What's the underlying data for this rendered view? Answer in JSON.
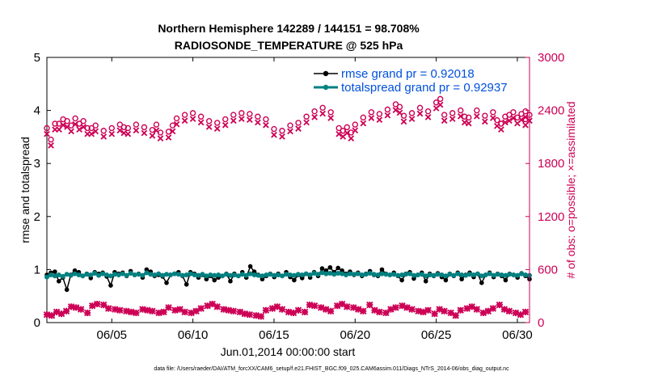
{
  "chart_data": {
    "type": "line",
    "title": [
      "Northern Hemisphere 142289 / 144151 = 98.708%",
      "RADIOSONDE_TEMPERATURE @ 525 hPa"
    ],
    "xlabel": "Jun.01,2014 00:00:00 start",
    "ylabel_left": "rmse and totalspread",
    "ylabel_right": "# of obs: o=possible; ×=assimilated",
    "footer": "data file: /Users/raeder/DAI/ATM_forcXX/CAM6_setup/f.e21.FHIST_BGC.f09_025.CAM6assim.011/Diags_NTrS_2014-06/obs_diag_output.nc",
    "x_ticks": [
      4,
      9,
      14,
      19,
      24,
      29
    ],
    "x_tick_labels": [
      "06/05",
      "06/10",
      "06/15",
      "06/20",
      "06/25",
      "06/30"
    ],
    "xlim": [
      0,
      29.75
    ],
    "ylim_left": [
      0,
      5
    ],
    "yticks_left": [
      0,
      1,
      2,
      3,
      4,
      5
    ],
    "ylim_right": [
      0,
      3000
    ],
    "yticks_right": [
      0,
      600,
      1200,
      1800,
      2400,
      3000
    ],
    "legend_position": "top-right",
    "colors": {
      "rmse": "#000000",
      "spread": "#008080",
      "obs": "#cc0055",
      "right_axis": "#cc0055",
      "legend_text": "#0050dd"
    },
    "series": [
      {
        "name": "rmse grand pr = 0.92018",
        "axis": "left",
        "values": [
          0.9,
          0.94,
          0.96,
          0.78,
          0.85,
          0.62,
          0.9,
          0.98,
          0.95,
          0.88,
          0.92,
          0.84,
          0.95,
          0.92,
          0.94,
          0.87,
          0.7,
          0.95,
          0.92,
          0.94,
          0.88,
          0.97,
          0.9,
          0.92,
          0.85,
          1.0,
          0.96,
          0.88,
          0.9,
          0.87,
          0.75,
          0.9,
          0.92,
          0.95,
          0.88,
          0.72,
          0.95,
          0.92,
          0.85,
          0.9,
          0.82,
          0.88,
          0.8,
          0.85,
          0.88,
          0.92,
          0.78,
          0.92,
          0.88,
          0.95,
          0.85,
          1.06,
          0.96,
          0.9,
          0.82,
          0.88,
          0.92,
          0.86,
          0.92,
          0.88,
          0.95,
          0.86,
          0.8,
          0.9,
          0.84,
          0.92,
          0.85,
          0.95,
          0.88,
          1.02,
          0.98,
          1.04,
          0.95,
          1.03,
          0.98,
          0.92,
          0.96,
          0.9,
          0.94,
          0.88,
          0.92,
          0.97,
          0.9,
          0.88,
          1.0,
          0.92,
          0.9,
          0.94,
          0.88,
          0.8,
          0.92,
          0.95,
          0.83,
          0.9,
          0.94,
          0.78,
          0.92,
          0.88,
          0.93,
          0.86,
          0.8,
          0.92,
          0.88,
          0.94,
          0.82,
          0.9,
          0.94,
          0.86,
          0.92,
          0.75,
          0.9,
          0.94,
          0.86,
          0.92,
          0.88,
          0.8,
          0.92,
          0.9,
          0.85,
          0.93,
          0.88,
          0.82
        ]
      },
      {
        "name": "totalspread grand pr = 0.92937",
        "axis": "left",
        "values": [
          0.86,
          0.9,
          0.88,
          0.9,
          0.87,
          0.91,
          0.89,
          0.92,
          0.9,
          0.88,
          0.91,
          0.9,
          0.93,
          0.89,
          0.92,
          0.9,
          0.88,
          0.91,
          0.9,
          0.92,
          0.89,
          0.93,
          0.9,
          0.91,
          0.89,
          0.94,
          0.91,
          0.9,
          0.92,
          0.89,
          0.91,
          0.9,
          0.92,
          0.91,
          0.89,
          0.9,
          0.92,
          0.9,
          0.89,
          0.91,
          0.88,
          0.9,
          0.89,
          0.9,
          0.88,
          0.91,
          0.89,
          0.9,
          0.88,
          0.91,
          0.89,
          0.92,
          0.9,
          0.89,
          0.88,
          0.9,
          0.91,
          0.89,
          0.9,
          0.88,
          0.91,
          0.9,
          0.89,
          0.91,
          0.9,
          0.92,
          0.9,
          0.93,
          0.91,
          0.94,
          0.92,
          0.93,
          0.91,
          0.93,
          0.92,
          0.9,
          0.92,
          0.91,
          0.92,
          0.9,
          0.91,
          0.93,
          0.91,
          0.9,
          0.92,
          0.91,
          0.9,
          0.91,
          0.89,
          0.9,
          0.91,
          0.92,
          0.89,
          0.9,
          0.91,
          0.88,
          0.9,
          0.89,
          0.91,
          0.9,
          0.88,
          0.91,
          0.89,
          0.92,
          0.9,
          0.89,
          0.91,
          0.9,
          0.92,
          0.88,
          0.9,
          0.92,
          0.89,
          0.91,
          0.9,
          0.89,
          0.91,
          0.9,
          0.89,
          0.92,
          0.9,
          0.89
        ]
      },
      {
        "name": "obs possible",
        "axis": "right",
        "values": [
          2200,
          2070,
          2250,
          2250,
          2300,
          2280,
          2230,
          2310,
          2250,
          2280,
          2200,
          2200,
          2230,
          2170,
          2200,
          2240,
          2210,
          2200,
          2240,
          2210,
          2180,
          2240,
          2150,
          2160,
          2230,
          2310,
          2350,
          2370,
          2330,
          2280,
          2260,
          2300,
          2350,
          2370,
          2360,
          2330,
          2300,
          2190,
          2170,
          2230,
          2260,
          2330,
          2390,
          2430,
          2380,
          2200,
          2170,
          2210,
          2150,
          2240,
          2320,
          2380,
          2360,
          2410,
          2470,
          2440,
          2340,
          2370,
          2430,
          2390,
          2490,
          2530,
          2350,
          2370,
          2400,
          2330,
          2320,
          2400,
          2340,
          2380,
          2290,
          2250,
          2330,
          2350,
          2380,
          2320,
          2360,
          2390,
          2300,
          2350
        ],
        "x": [
          0.0,
          0.25,
          0.5,
          0.75,
          1.0,
          1.25,
          1.5,
          1.75,
          2.0,
          2.25,
          2.5,
          2.75,
          3.0,
          3.5,
          4.0,
          4.5,
          4.75,
          5.0,
          5.5,
          6.0,
          6.5,
          6.75,
          7.0,
          7.5,
          7.75,
          8.0,
          8.5,
          9.0,
          9.5,
          10.0,
          10.5,
          11.0,
          11.5,
          12.0,
          12.5,
          13.0,
          13.5,
          14.0,
          14.5,
          15.0,
          15.5,
          16.0,
          16.5,
          17.0,
          17.5,
          18.0,
          18.25,
          18.5,
          18.75,
          19.0,
          19.5,
          20.0,
          20.5,
          21.0,
          21.5,
          21.75,
          22.0,
          22.5,
          23.0,
          23.5,
          24.0,
          24.25,
          24.5,
          25.0,
          25.5,
          25.75,
          26.0,
          26.5,
          27.0,
          27.5,
          27.75,
          28.0,
          28.25,
          28.5,
          28.75,
          29.0,
          29.25,
          29.5,
          29.5,
          29.75
        ]
      },
      {
        "name": "obs assimilated",
        "axis": "right",
        "x": [
          0.0,
          0.3,
          0.6,
          0.9,
          1.2,
          1.5,
          1.8,
          2.1,
          2.5,
          2.8,
          3.1,
          3.5,
          3.8,
          4.2,
          4.5,
          4.9,
          5.2,
          5.5,
          5.9,
          6.2,
          6.5,
          6.9,
          7.2,
          7.5,
          7.9,
          8.2,
          8.5,
          8.9,
          9.2,
          9.5,
          9.9,
          10.2,
          10.5,
          10.9,
          11.2,
          11.5,
          11.9,
          12.2,
          12.5,
          12.9,
          13.2,
          13.5,
          13.9,
          14.2,
          14.5,
          14.9,
          15.2,
          15.5,
          15.9,
          16.2,
          16.5,
          16.9,
          17.2,
          17.5,
          17.9,
          18.2,
          18.5,
          18.9,
          19.2,
          19.5,
          19.9,
          20.2,
          20.5,
          20.9,
          21.2,
          21.5,
          21.9,
          22.2,
          22.5,
          22.9,
          23.2,
          23.5,
          23.9,
          24.2,
          24.5,
          24.9,
          25.2,
          25.5,
          25.9,
          26.2,
          26.5,
          26.9,
          27.2,
          27.5,
          27.9,
          28.2,
          28.5,
          28.9,
          29.2,
          29.5
        ],
        "values": [
          90,
          80,
          120,
          100,
          130,
          180,
          170,
          150,
          110,
          190,
          210,
          200,
          160,
          150,
          140,
          130,
          120,
          110,
          150,
          140,
          130,
          110,
          120,
          170,
          140,
          150,
          120,
          110,
          130,
          160,
          190,
          210,
          180,
          150,
          140,
          130,
          120,
          100,
          90,
          80,
          70,
          140,
          160,
          180,
          150,
          120,
          110,
          140,
          120,
          200,
          190,
          170,
          150,
          130,
          190,
          210,
          180,
          170,
          150,
          130,
          200,
          140,
          120,
          110,
          150,
          170,
          190,
          170,
          150,
          130,
          120,
          140,
          100,
          150,
          130,
          110,
          80,
          140,
          160,
          180,
          150,
          110,
          130,
          160,
          200,
          150,
          130,
          110,
          90,
          120
        ]
      }
    ]
  }
}
